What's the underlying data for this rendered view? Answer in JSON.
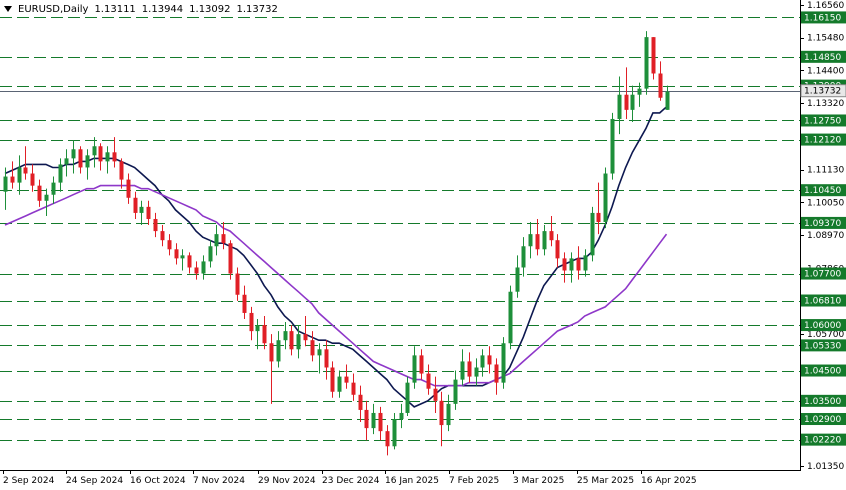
{
  "header": {
    "symbol": "EURUSD,Daily",
    "open": "1.13111",
    "high": "1.13944",
    "low": "1.13092",
    "close": "1.13732"
  },
  "colors": {
    "up": "#1e8f3a",
    "down": "#e01f26",
    "ma_fast": "#0d1850",
    "ma_slow": "#8e37c9",
    "level_line": "#147a2b",
    "price_line": "#5a6474"
  },
  "chart_data": {
    "type": "candlestick",
    "symbol": "EURUSD",
    "timeframe": "Daily",
    "ylim": [
      1.0135,
      1.1656
    ],
    "y_ticks": [
      "1.16560",
      "1.15480",
      "1.14400",
      "1.13320",
      "1.11130",
      "1.10050",
      "1.08970",
      "1.07860",
      "1.05700",
      "1.01350"
    ],
    "x_ticks": [
      "2 Sep 2024",
      "24 Sep 2024",
      "16 Oct 2024",
      "7 Nov 2024",
      "29 Nov 2024",
      "23 Dec 2024",
      "16 Jan 2025",
      "7 Feb 2025",
      "3 Mar 2025",
      "25 Mar 2025",
      "16 Apr 2025"
    ],
    "levels": [
      "1.16150",
      "1.14850",
      "1.13900",
      "1.12750",
      "1.12120",
      "1.10450",
      "1.09370",
      "1.07700",
      "1.06810",
      "1.06000",
      "1.05330",
      "1.04500",
      "1.03500",
      "1.02900",
      "1.02220"
    ],
    "current_price": "1.13732",
    "series": [
      {
        "type": "candles",
        "values": [
          [
            1.104,
            1.112,
            1.098,
            1.109
          ],
          [
            1.109,
            1.114,
            1.105,
            1.107
          ],
          [
            1.107,
            1.116,
            1.103,
            1.112
          ],
          [
            1.112,
            1.119,
            1.108,
            1.11
          ],
          [
            1.11,
            1.113,
            1.104,
            1.106
          ],
          [
            1.106,
            1.108,
            1.099,
            1.101
          ],
          [
            1.101,
            1.105,
            1.096,
            1.103
          ],
          [
            1.103,
            1.109,
            1.1,
            1.107
          ],
          [
            1.107,
            1.115,
            1.104,
            1.113
          ],
          [
            1.113,
            1.118,
            1.109,
            1.115
          ],
          [
            1.115,
            1.121,
            1.11,
            1.118
          ],
          [
            1.118,
            1.119,
            1.11,
            1.112
          ],
          [
            1.112,
            1.118,
            1.108,
            1.116
          ],
          [
            1.116,
            1.122,
            1.112,
            1.119
          ],
          [
            1.119,
            1.12,
            1.111,
            1.114
          ],
          [
            1.114,
            1.119,
            1.11,
            1.117
          ],
          [
            1.117,
            1.122,
            1.112,
            1.114
          ],
          [
            1.114,
            1.115,
            1.105,
            1.108
          ],
          [
            1.108,
            1.11,
            1.1,
            1.102
          ],
          [
            1.102,
            1.104,
            1.095,
            1.097
          ],
          [
            1.097,
            1.101,
            1.093,
            1.099
          ],
          [
            1.099,
            1.101,
            1.093,
            1.095
          ],
          [
            1.095,
            1.097,
            1.089,
            1.091
          ],
          [
            1.091,
            1.093,
            1.086,
            1.088
          ],
          [
            1.088,
            1.09,
            1.083,
            1.085
          ],
          [
            1.085,
            1.087,
            1.08,
            1.082
          ],
          [
            1.082,
            1.085,
            1.078,
            1.083
          ],
          [
            1.083,
            1.084,
            1.077,
            1.079
          ],
          [
            1.079,
            1.081,
            1.075,
            1.077
          ],
          [
            1.077,
            1.083,
            1.075,
            1.081
          ],
          [
            1.081,
            1.088,
            1.079,
            1.086
          ],
          [
            1.086,
            1.093,
            1.083,
            1.09
          ],
          [
            1.09,
            1.094,
            1.085,
            1.087
          ],
          [
            1.087,
            1.088,
            1.075,
            1.077
          ],
          [
            1.077,
            1.079,
            1.068,
            1.07
          ],
          [
            1.07,
            1.073,
            1.062,
            1.064
          ],
          [
            1.064,
            1.066,
            1.055,
            1.058
          ],
          [
            1.058,
            1.062,
            1.052,
            1.06
          ],
          [
            1.06,
            1.063,
            1.052,
            1.054
          ],
          [
            1.054,
            1.057,
            1.034,
            1.048
          ],
          [
            1.048,
            1.058,
            1.046,
            1.055
          ],
          [
            1.055,
            1.061,
            1.052,
            1.058
          ],
          [
            1.058,
            1.06,
            1.05,
            1.052
          ],
          [
            1.052,
            1.06,
            1.049,
            1.057
          ],
          [
            1.057,
            1.063,
            1.053,
            1.055
          ],
          [
            1.055,
            1.058,
            1.048,
            1.05
          ],
          [
            1.05,
            1.054,
            1.044,
            1.052
          ],
          [
            1.052,
            1.055,
            1.042,
            1.046
          ],
          [
            1.046,
            1.048,
            1.036,
            1.038
          ],
          [
            1.038,
            1.045,
            1.036,
            1.043
          ],
          [
            1.043,
            1.047,
            1.039,
            1.041
          ],
          [
            1.041,
            1.044,
            1.035,
            1.037
          ],
          [
            1.037,
            1.04,
            1.028,
            1.032
          ],
          [
            1.032,
            1.035,
            1.022,
            1.026
          ],
          [
            1.026,
            1.034,
            1.024,
            1.031
          ],
          [
            1.031,
            1.033,
            1.022,
            1.025
          ],
          [
            1.025,
            1.027,
            1.017,
            1.02
          ],
          [
            1.02,
            1.031,
            1.019,
            1.029
          ],
          [
            1.029,
            1.034,
            1.026,
            1.031
          ],
          [
            1.031,
            1.043,
            1.03,
            1.041
          ],
          [
            1.041,
            1.053,
            1.039,
            1.05
          ],
          [
            1.05,
            1.052,
            1.042,
            1.044
          ],
          [
            1.044,
            1.047,
            1.037,
            1.039
          ],
          [
            1.039,
            1.043,
            1.031,
            1.035
          ],
          [
            1.035,
            1.038,
            1.02,
            1.027
          ],
          [
            1.027,
            1.037,
            1.025,
            1.034
          ],
          [
            1.034,
            1.045,
            1.032,
            1.042
          ],
          [
            1.042,
            1.052,
            1.04,
            1.048
          ],
          [
            1.048,
            1.051,
            1.041,
            1.043
          ],
          [
            1.043,
            1.049,
            1.04,
            1.046
          ],
          [
            1.046,
            1.052,
            1.043,
            1.05
          ],
          [
            1.05,
            1.053,
            1.044,
            1.047
          ],
          [
            1.047,
            1.049,
            1.037,
            1.041
          ],
          [
            1.041,
            1.056,
            1.039,
            1.054
          ],
          [
            1.054,
            1.073,
            1.052,
            1.071
          ],
          [
            1.071,
            1.083,
            1.069,
            1.079
          ],
          [
            1.079,
            1.089,
            1.076,
            1.086
          ],
          [
            1.086,
            1.094,
            1.082,
            1.09
          ],
          [
            1.09,
            1.095,
            1.083,
            1.085
          ],
          [
            1.085,
            1.093,
            1.083,
            1.091
          ],
          [
            1.091,
            1.096,
            1.086,
            1.088
          ],
          [
            1.088,
            1.09,
            1.079,
            1.082
          ],
          [
            1.082,
            1.084,
            1.074,
            1.078
          ],
          [
            1.078,
            1.084,
            1.074,
            1.082
          ],
          [
            1.082,
            1.086,
            1.075,
            1.078
          ],
          [
            1.078,
            1.085,
            1.076,
            1.083
          ],
          [
            1.083,
            1.099,
            1.081,
            1.097
          ],
          [
            1.097,
            1.107,
            1.09,
            1.094
          ],
          [
            1.094,
            1.112,
            1.092,
            1.11
          ],
          [
            1.11,
            1.13,
            1.108,
            1.128
          ],
          [
            1.128,
            1.142,
            1.123,
            1.136
          ],
          [
            1.136,
            1.145,
            1.128,
            1.131
          ],
          [
            1.131,
            1.139,
            1.127,
            1.136
          ],
          [
            1.136,
            1.14,
            1.132,
            1.138
          ],
          [
            1.138,
            1.157,
            1.136,
            1.155
          ],
          [
            1.155,
            1.155,
            1.141,
            1.143
          ],
          [
            1.143,
            1.147,
            1.134,
            1.135
          ],
          [
            1.131,
            1.139,
            1.131,
            1.137
          ]
        ]
      },
      {
        "type": "line",
        "values": [
          1.11,
          1.111,
          1.112,
          1.113,
          1.113,
          1.113,
          1.113,
          1.112,
          1.112,
          1.113,
          1.113,
          1.114,
          1.114,
          1.115,
          1.115,
          1.115,
          1.115,
          1.114,
          1.113,
          1.112,
          1.11,
          1.108,
          1.106,
          1.103,
          1.101,
          1.098,
          1.096,
          1.094,
          1.091,
          1.089,
          1.088,
          1.087,
          1.087,
          1.086,
          1.085,
          1.083,
          1.08,
          1.077,
          1.073,
          1.07,
          1.066,
          1.063,
          1.061,
          1.058,
          1.057,
          1.056,
          1.055,
          1.055,
          1.054,
          1.054,
          1.053,
          1.052,
          1.05,
          1.048,
          1.046,
          1.044,
          1.042,
          1.039,
          1.037,
          1.035,
          1.033,
          1.034,
          1.035,
          1.037,
          1.039,
          1.04,
          1.04,
          1.04,
          1.04,
          1.04,
          1.04,
          1.041,
          1.042,
          1.043,
          1.046,
          1.051,
          1.056,
          1.062,
          1.068,
          1.073,
          1.076,
          1.079,
          1.08,
          1.081,
          1.082,
          1.082,
          1.084,
          1.088,
          1.093,
          1.099,
          1.106,
          1.112,
          1.117,
          1.121,
          1.125,
          1.13,
          1.13,
          1.132
        ]
      },
      {
        "type": "line",
        "values": [
          1.093,
          1.094,
          1.095,
          1.096,
          1.097,
          1.098,
          1.099,
          1.1,
          1.101,
          1.102,
          1.103,
          1.104,
          1.105,
          1.105,
          1.106,
          1.106,
          1.106,
          1.106,
          1.106,
          1.106,
          1.105,
          1.105,
          1.104,
          1.103,
          1.102,
          1.101,
          1.1,
          1.099,
          1.098,
          1.096,
          1.095,
          1.094,
          1.092,
          1.091,
          1.089,
          1.087,
          1.085,
          1.083,
          1.081,
          1.079,
          1.077,
          1.075,
          1.073,
          1.071,
          1.069,
          1.067,
          1.064,
          1.062,
          1.06,
          1.058,
          1.056,
          1.054,
          1.052,
          1.05,
          1.048,
          1.047,
          1.046,
          1.045,
          1.044,
          1.043,
          1.042,
          1.042,
          1.041,
          1.04,
          1.04,
          1.04,
          1.04,
          1.04,
          1.041,
          1.041,
          1.041,
          1.041,
          1.042,
          1.043,
          1.044,
          1.046,
          1.048,
          1.05,
          1.052,
          1.054,
          1.056,
          1.058,
          1.059,
          1.06,
          1.061,
          1.063,
          1.064,
          1.065,
          1.066,
          1.068,
          1.07,
          1.072,
          1.075,
          1.078,
          1.081,
          1.084,
          1.087,
          1.09
        ]
      }
    ]
  }
}
